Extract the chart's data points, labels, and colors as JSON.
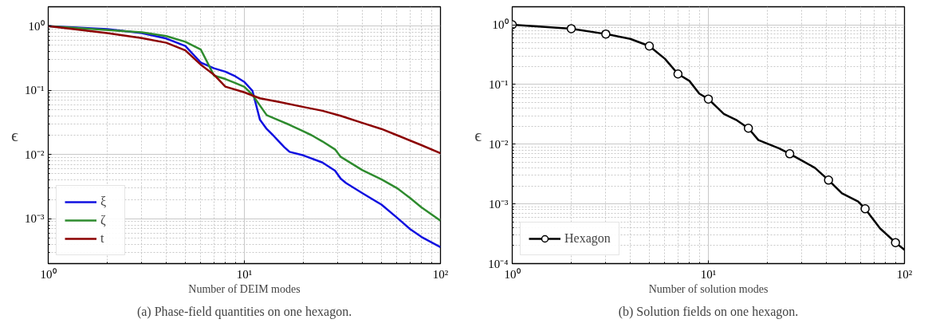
{
  "chart_data": [
    {
      "type": "line",
      "ylabel": "ϵ",
      "xlabel": "Number of DEIM modes",
      "annotations": [
        "(a) Phase-field quantities on one hexagon."
      ],
      "log": "xy",
      "grid": true,
      "legend": "bottom left",
      "xlim": [
        1,
        100
      ],
      "ylim": [
        0.0002,
        2
      ],
      "xticks": [
        {
          "value": 1,
          "label": "10⁰"
        },
        {
          "value": 10,
          "label": "10¹"
        },
        {
          "value": 100,
          "label": "10²"
        }
      ],
      "yticks": [
        {
          "value": 0.001,
          "label": "10⁻³"
        },
        {
          "value": 0.01,
          "label": "10⁻²"
        },
        {
          "value": 0.1,
          "label": "10⁻¹"
        },
        {
          "value": 1,
          "label": "10⁰"
        }
      ],
      "series": [
        {
          "name": "ξ",
          "color": "#1010e0",
          "x": [
            1,
            2,
            3,
            4,
            5,
            6,
            7,
            8,
            9,
            10,
            11,
            12,
            13,
            14,
            15,
            16,
            17,
            20,
            25,
            29,
            31,
            33,
            40,
            50,
            60,
            70,
            80,
            100
          ],
          "values": [
            1.0,
            0.9,
            0.78,
            0.64,
            0.49,
            0.27,
            0.22,
            0.195,
            0.165,
            0.135,
            0.098,
            0.035,
            0.025,
            0.02,
            0.016,
            0.013,
            0.011,
            0.0097,
            0.0075,
            0.0056,
            0.0042,
            0.0036,
            0.0025,
            0.00166,
            0.00104,
            0.00069,
            0.00052,
            0.00036
          ]
        },
        {
          "name": "ζ",
          "color": "#2e8b2e",
          "x": [
            1,
            3,
            4,
            5,
            6,
            7,
            8,
            9,
            10,
            11,
            13,
            15,
            17,
            20,
            22,
            25,
            29,
            31,
            40,
            50,
            60,
            70,
            80,
            100
          ],
          "values": [
            1.0,
            0.8,
            0.7,
            0.57,
            0.43,
            0.17,
            0.15,
            0.13,
            0.113,
            0.085,
            0.041,
            0.034,
            0.029,
            0.023,
            0.02,
            0.016,
            0.012,
            0.0092,
            0.0057,
            0.0041,
            0.003,
            0.0021,
            0.0015,
            0.00093
          ]
        },
        {
          "name": "t",
          "color": "#8b0000",
          "x": [
            1,
            2,
            3,
            4,
            5,
            6,
            7,
            8,
            10,
            11,
            12,
            15,
            20,
            25,
            31,
            40,
            50,
            60,
            80,
            100
          ],
          "values": [
            1.0,
            0.78,
            0.65,
            0.55,
            0.42,
            0.25,
            0.175,
            0.114,
            0.093,
            0.083,
            0.075,
            0.066,
            0.055,
            0.048,
            0.04,
            0.031,
            0.025,
            0.02,
            0.014,
            0.0105
          ]
        }
      ]
    },
    {
      "type": "line",
      "ylabel": "ϵ",
      "xlabel": "Number of solution modes",
      "annotations": [
        "(b) Solution fields on one hexagon."
      ],
      "log": "xy",
      "grid": true,
      "legend": "bottom left",
      "xlim": [
        1,
        100
      ],
      "ylim": [
        0.0001,
        2
      ],
      "xticks": [
        {
          "value": 1,
          "label": "10⁰"
        },
        {
          "value": 10,
          "label": "10¹"
        },
        {
          "value": 100,
          "label": "10²"
        }
      ],
      "yticks": [
        {
          "value": 0.0001,
          "label": "10⁻⁴"
        },
        {
          "value": 0.001,
          "label": "10⁻³"
        },
        {
          "value": 0.01,
          "label": "10⁻²"
        },
        {
          "value": 0.1,
          "label": "10⁻¹"
        },
        {
          "value": 1,
          "label": "10⁰"
        }
      ],
      "series": [
        {
          "color": "#000000",
          "marker": "none",
          "x": [
            1,
            2,
            3,
            4,
            5,
            6,
            7,
            8,
            9,
            10,
            12,
            14,
            16,
            18,
            23,
            26,
            30,
            35,
            41,
            48,
            58,
            63,
            75,
            90,
            100
          ],
          "values": [
            1.0,
            0.86,
            0.7,
            0.58,
            0.44,
            0.27,
            0.15,
            0.115,
            0.07,
            0.057,
            0.032,
            0.025,
            0.0185,
            0.0117,
            0.0085,
            0.0069,
            0.0053,
            0.004,
            0.0025,
            0.0015,
            0.0011,
            0.00083,
            0.00039,
            0.000225,
            0.00017
          ]
        },
        {
          "name": "Hexagon",
          "type": "scatter",
          "color": "#000000",
          "marker": "circle",
          "x": [
            1,
            2,
            3,
            5,
            7,
            10,
            16,
            26,
            41,
            63,
            90
          ],
          "values": [
            1.0,
            0.86,
            0.7,
            0.44,
            0.15,
            0.057,
            0.0185,
            0.0069,
            0.0025,
            0.00083,
            0.000225
          ]
        }
      ]
    }
  ]
}
